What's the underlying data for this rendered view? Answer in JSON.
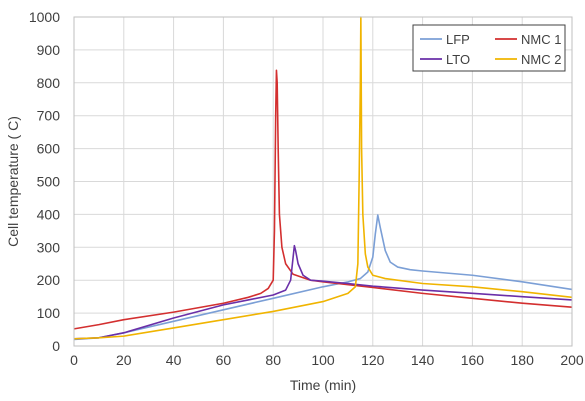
{
  "chart_data": {
    "type": "line",
    "xlabel": "Time (min)",
    "ylabel": "Cell temperature ( C)",
    "xlim": [
      0,
      200
    ],
    "ylim": [
      0,
      1000
    ],
    "xticks": [
      0,
      20,
      40,
      60,
      80,
      100,
      120,
      140,
      160,
      180,
      200
    ],
    "yticks": [
      0,
      100,
      200,
      300,
      400,
      500,
      600,
      700,
      800,
      900,
      1000
    ],
    "grid": true,
    "legend_position": "top-right",
    "series": [
      {
        "name": "LFP",
        "color": "#7b9fd6",
        "points": [
          [
            0,
            20
          ],
          [
            10,
            25
          ],
          [
            20,
            40
          ],
          [
            40,
            75
          ],
          [
            60,
            110
          ],
          [
            80,
            145
          ],
          [
            100,
            180
          ],
          [
            110,
            195
          ],
          [
            115,
            205
          ],
          [
            118,
            225
          ],
          [
            120,
            270
          ],
          [
            121,
            340
          ],
          [
            122,
            398
          ],
          [
            123,
            360
          ],
          [
            125,
            290
          ],
          [
            127,
            255
          ],
          [
            130,
            240
          ],
          [
            135,
            232
          ],
          [
            140,
            228
          ],
          [
            160,
            215
          ],
          [
            180,
            195
          ],
          [
            200,
            172
          ]
        ]
      },
      {
        "name": "NMC 1",
        "color": "#d32f2f",
        "points": [
          [
            0,
            52
          ],
          [
            10,
            65
          ],
          [
            20,
            80
          ],
          [
            40,
            103
          ],
          [
            60,
            130
          ],
          [
            70,
            148
          ],
          [
            75,
            160
          ],
          [
            78,
            175
          ],
          [
            80,
            200
          ],
          [
            80.5,
            350
          ],
          [
            81,
            700
          ],
          [
            81.3,
            838
          ],
          [
            81.6,
            800
          ],
          [
            82,
            600
          ],
          [
            82.5,
            400
          ],
          [
            83.5,
            300
          ],
          [
            85,
            250
          ],
          [
            88,
            218
          ],
          [
            95,
            200
          ],
          [
            100,
            195
          ],
          [
            120,
            178
          ],
          [
            140,
            160
          ],
          [
            160,
            145
          ],
          [
            180,
            130
          ],
          [
            200,
            118
          ]
        ]
      },
      {
        "name": "LTO",
        "color": "#6a2fa8",
        "points": [
          [
            0,
            22
          ],
          [
            10,
            25
          ],
          [
            20,
            40
          ],
          [
            40,
            85
          ],
          [
            60,
            125
          ],
          [
            70,
            140
          ],
          [
            80,
            155
          ],
          [
            85,
            170
          ],
          [
            87,
            200
          ],
          [
            88,
            270
          ],
          [
            88.5,
            305
          ],
          [
            89,
            290
          ],
          [
            90,
            250
          ],
          [
            92,
            215
          ],
          [
            95,
            200
          ],
          [
            100,
            197
          ],
          [
            110,
            190
          ],
          [
            120,
            182
          ],
          [
            140,
            170
          ],
          [
            160,
            160
          ],
          [
            180,
            150
          ],
          [
            200,
            140
          ]
        ]
      },
      {
        "name": "NMC 2",
        "color": "#f0b400",
        "points": [
          [
            0,
            22
          ],
          [
            10,
            25
          ],
          [
            20,
            30
          ],
          [
            40,
            55
          ],
          [
            60,
            80
          ],
          [
            80,
            105
          ],
          [
            100,
            135
          ],
          [
            110,
            160
          ],
          [
            113,
            180
          ],
          [
            114,
            250
          ],
          [
            114.5,
            500
          ],
          [
            115,
            800
          ],
          [
            115.2,
            1000
          ],
          [
            115.5,
            600
          ],
          [
            116,
            400
          ],
          [
            117,
            280
          ],
          [
            118,
            240
          ],
          [
            120,
            215
          ],
          [
            125,
            205
          ],
          [
            140,
            190
          ],
          [
            160,
            180
          ],
          [
            180,
            165
          ],
          [
            200,
            148
          ]
        ]
      }
    ]
  }
}
